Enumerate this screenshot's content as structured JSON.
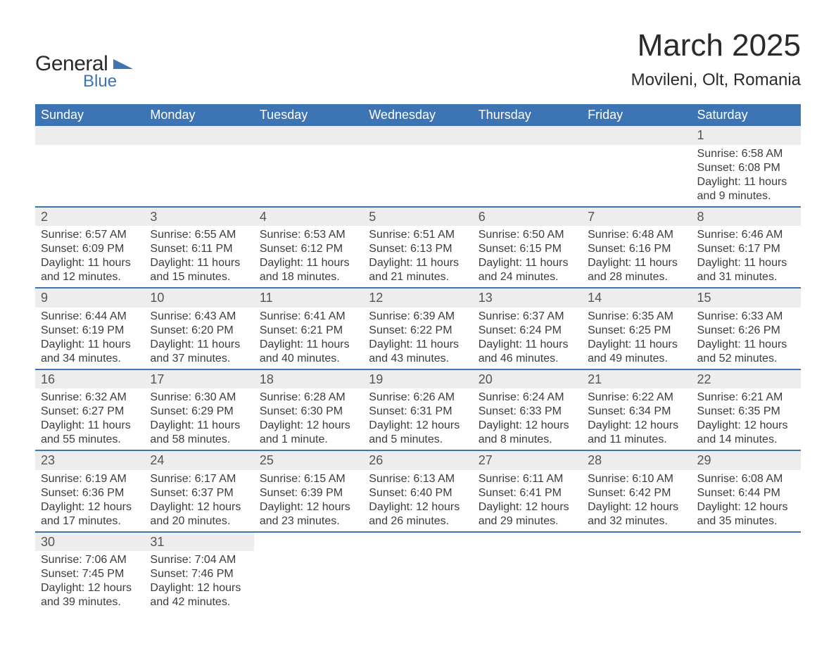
{
  "logo": {
    "text1": "General",
    "text2": "Blue"
  },
  "title": "March 2025",
  "location": "Movileni, Olt, Romania",
  "colors": {
    "header_bg": "#3d74b3",
    "header_text": "#ffffff",
    "daynum_bg": "#ededed",
    "row_border": "#3d74b3",
    "body_text": "#3c3c3c",
    "page_bg": "#ffffff"
  },
  "fonts": {
    "title_size_pt": 33,
    "location_size_pt": 18,
    "header_size_pt": 14,
    "body_size_pt": 12
  },
  "days_of_week": [
    "Sunday",
    "Monday",
    "Tuesday",
    "Wednesday",
    "Thursday",
    "Friday",
    "Saturday"
  ],
  "weeks": [
    [
      null,
      null,
      null,
      null,
      null,
      null,
      {
        "n": "1",
        "sunrise": "Sunrise: 6:58 AM",
        "sunset": "Sunset: 6:08 PM",
        "day1": "Daylight: 11 hours",
        "day2": "and 9 minutes."
      }
    ],
    [
      {
        "n": "2",
        "sunrise": "Sunrise: 6:57 AM",
        "sunset": "Sunset: 6:09 PM",
        "day1": "Daylight: 11 hours",
        "day2": "and 12 minutes."
      },
      {
        "n": "3",
        "sunrise": "Sunrise: 6:55 AM",
        "sunset": "Sunset: 6:11 PM",
        "day1": "Daylight: 11 hours",
        "day2": "and 15 minutes."
      },
      {
        "n": "4",
        "sunrise": "Sunrise: 6:53 AM",
        "sunset": "Sunset: 6:12 PM",
        "day1": "Daylight: 11 hours",
        "day2": "and 18 minutes."
      },
      {
        "n": "5",
        "sunrise": "Sunrise: 6:51 AM",
        "sunset": "Sunset: 6:13 PM",
        "day1": "Daylight: 11 hours",
        "day2": "and 21 minutes."
      },
      {
        "n": "6",
        "sunrise": "Sunrise: 6:50 AM",
        "sunset": "Sunset: 6:15 PM",
        "day1": "Daylight: 11 hours",
        "day2": "and 24 minutes."
      },
      {
        "n": "7",
        "sunrise": "Sunrise: 6:48 AM",
        "sunset": "Sunset: 6:16 PM",
        "day1": "Daylight: 11 hours",
        "day2": "and 28 minutes."
      },
      {
        "n": "8",
        "sunrise": "Sunrise: 6:46 AM",
        "sunset": "Sunset: 6:17 PM",
        "day1": "Daylight: 11 hours",
        "day2": "and 31 minutes."
      }
    ],
    [
      {
        "n": "9",
        "sunrise": "Sunrise: 6:44 AM",
        "sunset": "Sunset: 6:19 PM",
        "day1": "Daylight: 11 hours",
        "day2": "and 34 minutes."
      },
      {
        "n": "10",
        "sunrise": "Sunrise: 6:43 AM",
        "sunset": "Sunset: 6:20 PM",
        "day1": "Daylight: 11 hours",
        "day2": "and 37 minutes."
      },
      {
        "n": "11",
        "sunrise": "Sunrise: 6:41 AM",
        "sunset": "Sunset: 6:21 PM",
        "day1": "Daylight: 11 hours",
        "day2": "and 40 minutes."
      },
      {
        "n": "12",
        "sunrise": "Sunrise: 6:39 AM",
        "sunset": "Sunset: 6:22 PM",
        "day1": "Daylight: 11 hours",
        "day2": "and 43 minutes."
      },
      {
        "n": "13",
        "sunrise": "Sunrise: 6:37 AM",
        "sunset": "Sunset: 6:24 PM",
        "day1": "Daylight: 11 hours",
        "day2": "and 46 minutes."
      },
      {
        "n": "14",
        "sunrise": "Sunrise: 6:35 AM",
        "sunset": "Sunset: 6:25 PM",
        "day1": "Daylight: 11 hours",
        "day2": "and 49 minutes."
      },
      {
        "n": "15",
        "sunrise": "Sunrise: 6:33 AM",
        "sunset": "Sunset: 6:26 PM",
        "day1": "Daylight: 11 hours",
        "day2": "and 52 minutes."
      }
    ],
    [
      {
        "n": "16",
        "sunrise": "Sunrise: 6:32 AM",
        "sunset": "Sunset: 6:27 PM",
        "day1": "Daylight: 11 hours",
        "day2": "and 55 minutes."
      },
      {
        "n": "17",
        "sunrise": "Sunrise: 6:30 AM",
        "sunset": "Sunset: 6:29 PM",
        "day1": "Daylight: 11 hours",
        "day2": "and 58 minutes."
      },
      {
        "n": "18",
        "sunrise": "Sunrise: 6:28 AM",
        "sunset": "Sunset: 6:30 PM",
        "day1": "Daylight: 12 hours",
        "day2": "and 1 minute."
      },
      {
        "n": "19",
        "sunrise": "Sunrise: 6:26 AM",
        "sunset": "Sunset: 6:31 PM",
        "day1": "Daylight: 12 hours",
        "day2": "and 5 minutes."
      },
      {
        "n": "20",
        "sunrise": "Sunrise: 6:24 AM",
        "sunset": "Sunset: 6:33 PM",
        "day1": "Daylight: 12 hours",
        "day2": "and 8 minutes."
      },
      {
        "n": "21",
        "sunrise": "Sunrise: 6:22 AM",
        "sunset": "Sunset: 6:34 PM",
        "day1": "Daylight: 12 hours",
        "day2": "and 11 minutes."
      },
      {
        "n": "22",
        "sunrise": "Sunrise: 6:21 AM",
        "sunset": "Sunset: 6:35 PM",
        "day1": "Daylight: 12 hours",
        "day2": "and 14 minutes."
      }
    ],
    [
      {
        "n": "23",
        "sunrise": "Sunrise: 6:19 AM",
        "sunset": "Sunset: 6:36 PM",
        "day1": "Daylight: 12 hours",
        "day2": "and 17 minutes."
      },
      {
        "n": "24",
        "sunrise": "Sunrise: 6:17 AM",
        "sunset": "Sunset: 6:37 PM",
        "day1": "Daylight: 12 hours",
        "day2": "and 20 minutes."
      },
      {
        "n": "25",
        "sunrise": "Sunrise: 6:15 AM",
        "sunset": "Sunset: 6:39 PM",
        "day1": "Daylight: 12 hours",
        "day2": "and 23 minutes."
      },
      {
        "n": "26",
        "sunrise": "Sunrise: 6:13 AM",
        "sunset": "Sunset: 6:40 PM",
        "day1": "Daylight: 12 hours",
        "day2": "and 26 minutes."
      },
      {
        "n": "27",
        "sunrise": "Sunrise: 6:11 AM",
        "sunset": "Sunset: 6:41 PM",
        "day1": "Daylight: 12 hours",
        "day2": "and 29 minutes."
      },
      {
        "n": "28",
        "sunrise": "Sunrise: 6:10 AM",
        "sunset": "Sunset: 6:42 PM",
        "day1": "Daylight: 12 hours",
        "day2": "and 32 minutes."
      },
      {
        "n": "29",
        "sunrise": "Sunrise: 6:08 AM",
        "sunset": "Sunset: 6:44 PM",
        "day1": "Daylight: 12 hours",
        "day2": "and 35 minutes."
      }
    ],
    [
      {
        "n": "30",
        "sunrise": "Sunrise: 7:06 AM",
        "sunset": "Sunset: 7:45 PM",
        "day1": "Daylight: 12 hours",
        "day2": "and 39 minutes."
      },
      {
        "n": "31",
        "sunrise": "Sunrise: 7:04 AM",
        "sunset": "Sunset: 7:46 PM",
        "day1": "Daylight: 12 hours",
        "day2": "and 42 minutes."
      },
      null,
      null,
      null,
      null,
      null
    ]
  ]
}
